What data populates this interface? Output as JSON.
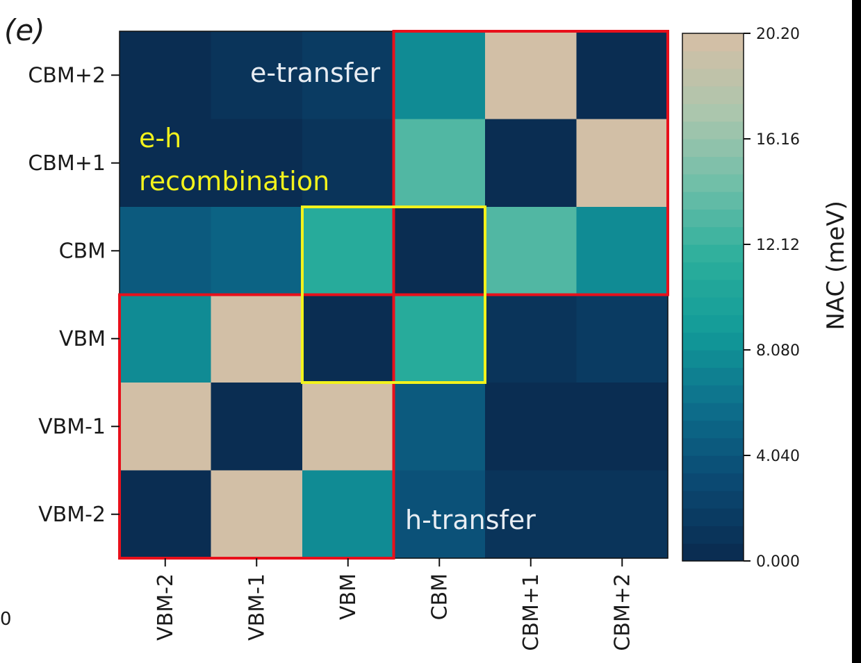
{
  "panel_label": "(e)",
  "stray_label": "0",
  "chart_data": {
    "type": "heatmap",
    "title": "",
    "xlabel": "",
    "ylabel": "",
    "x_categories": [
      "VBM-2",
      "VBM-1",
      "VBM",
      "CBM",
      "CBM+1",
      "CBM+2"
    ],
    "y_categories": [
      "CBM+2",
      "CBM+1",
      "CBM",
      "VBM",
      "VBM-1",
      "VBM-2"
    ],
    "values": [
      [
        0.6,
        0.8,
        2.0,
        7.5,
        20.2,
        0.5
      ],
      [
        0.5,
        0.6,
        0.8,
        12.8,
        0.5,
        20.2
      ],
      [
        4.4,
        4.8,
        11.3,
        0.0,
        13.0,
        7.6
      ],
      [
        7.8,
        20.2,
        0.0,
        11.0,
        1.0,
        1.6
      ],
      [
        20.2,
        0.0,
        20.2,
        4.4,
        0.6,
        0.6
      ],
      [
        0.0,
        20.2,
        8.0,
        3.6,
        0.8,
        0.8
      ]
    ],
    "colorbar": {
      "label": "NAC (meV)",
      "min": 0.0,
      "max": 20.2,
      "ticks": [
        "0.000",
        "4.040",
        "8.080",
        "12.12",
        "16.16",
        "20.20"
      ],
      "tick_values": [
        0.0,
        4.04,
        8.08,
        12.12,
        16.16,
        20.2
      ],
      "levels": 30
    },
    "colormap": [
      "#0a2d52",
      "#0b4a73",
      "#0d6e8c",
      "#129a98",
      "#2aae9c",
      "#6dbea8",
      "#aac6ad",
      "#d2bfa6"
    ],
    "annotations": [
      {
        "text": "e-transfer",
        "color": "#e8edf3"
      },
      {
        "text": "e-h",
        "color": "#f2f21c"
      },
      {
        "text": "recombination",
        "color": "#f2f21c"
      },
      {
        "text": "h-transfer",
        "color": "#e8edf3"
      }
    ],
    "highlight_boxes": [
      {
        "label": "e-transfer",
        "color": "#e8101b",
        "x_from": "CBM",
        "x_to": "CBM+2",
        "y_from": "CBM+2",
        "y_to": "CBM"
      },
      {
        "label": "h-transfer",
        "color": "#e8101b",
        "x_from": "VBM-2",
        "x_to": "VBM",
        "y_from": "VBM",
        "y_to": "VBM-2"
      },
      {
        "label": "e-h recombination",
        "color": "#f2f21c",
        "x_from": "VBM",
        "x_to": "CBM",
        "y_from": "CBM",
        "y_to": "VBM"
      }
    ],
    "grid": false,
    "legend": "colorbar-right"
  }
}
